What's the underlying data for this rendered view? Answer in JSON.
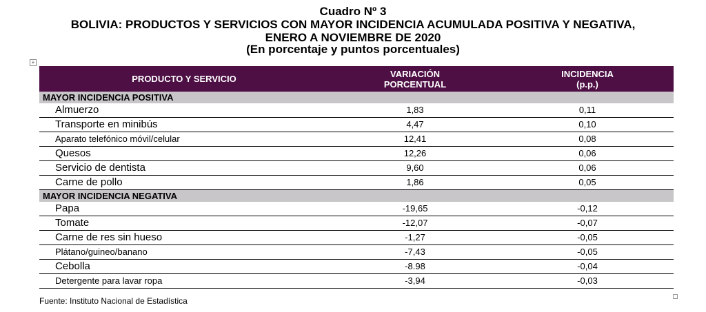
{
  "title": {
    "line1": "Cuadro Nº 3",
    "line2": "BOLIVIA: PRODUCTOS Y SERVICIOS CON MAYOR INCIDENCIA ACUMULADA POSITIVA Y NEGATIVA,",
    "line3": "ENERO A NOVIEMBRE DE 2020",
    "line4": "(En porcentaje y puntos porcentuales)"
  },
  "table": {
    "headers": {
      "col1": "PRODUCTO Y SERVICIO",
      "col2_line1": "VARIACIÓN",
      "col2_line2": "PORCENTUAL",
      "col3_line1": "INCIDENCIA",
      "col3_line2": "(p.p.)"
    },
    "sections": [
      {
        "label": "MAYOR INCIDENCIA POSITIVA",
        "rows": [
          {
            "name": "Almuerzo",
            "variacion": "1,83",
            "incidencia": "0,11"
          },
          {
            "name": "Transporte en minibús",
            "variacion": "4,47",
            "incidencia": "0,10"
          },
          {
            "name": "Aparato telefónico móvil/celular",
            "variacion": "12,41",
            "incidencia": "0,08"
          },
          {
            "name": "Quesos",
            "variacion": "12,26",
            "incidencia": "0,06"
          },
          {
            "name": "Servicio de dentista",
            "variacion": "9,60",
            "incidencia": "0,06"
          },
          {
            "name": "Carne de pollo",
            "variacion": "1,86",
            "incidencia": "0,05"
          }
        ]
      },
      {
        "label": "MAYOR INCIDENCIA NEGATIVA",
        "rows": [
          {
            "name": "Papa",
            "variacion": "-19,65",
            "incidencia": "-0,12"
          },
          {
            "name": "Tomate",
            "variacion": "-12,07",
            "incidencia": "-0,07"
          },
          {
            "name": "Carne de res sin hueso",
            "variacion": "-1,27",
            "incidencia": "-0,05"
          },
          {
            "name": "Plátano/guineo/banano",
            "variacion": "-7,43",
            "incidencia": "-0,05"
          },
          {
            "name": "Cebolla",
            "variacion": "-8.98",
            "incidencia": "-0,04"
          },
          {
            "name": "Detergente para lavar ropa",
            "variacion": "-3,94",
            "incidencia": "-0,03"
          }
        ]
      }
    ]
  },
  "source": "Fuente: Instituto Nacional de Estadística",
  "colors": {
    "header_bg": "#4e0f45",
    "section_bg": "#c8c6c8"
  },
  "icons": {
    "table_handle": "move-handle-icon",
    "resize_handle": "resize-handle-icon"
  }
}
